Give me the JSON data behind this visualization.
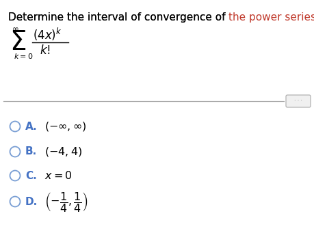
{
  "title_part1": "Determine the interval of convergence of ",
  "title_part2": "the power series.",
  "title_color1": "#000000",
  "title_color2": "#c0392b",
  "title_fontsize": 11.0,
  "background_color": "#ffffff",
  "option_label_color": "#4472c4",
  "option_text_color": "#000000",
  "circle_color": "#7a9fd4",
  "options": [
    {
      "label": "A.",
      "text": "$(-\\infty,\\infty)$"
    },
    {
      "label": "B.",
      "text": "$(-4,4)$"
    },
    {
      "label": "C.",
      "text": "$x=0$"
    },
    {
      "label": "D.",
      "text": "$\\left(-\\dfrac{1}{4},\\dfrac{1}{4}\\right)$"
    }
  ]
}
